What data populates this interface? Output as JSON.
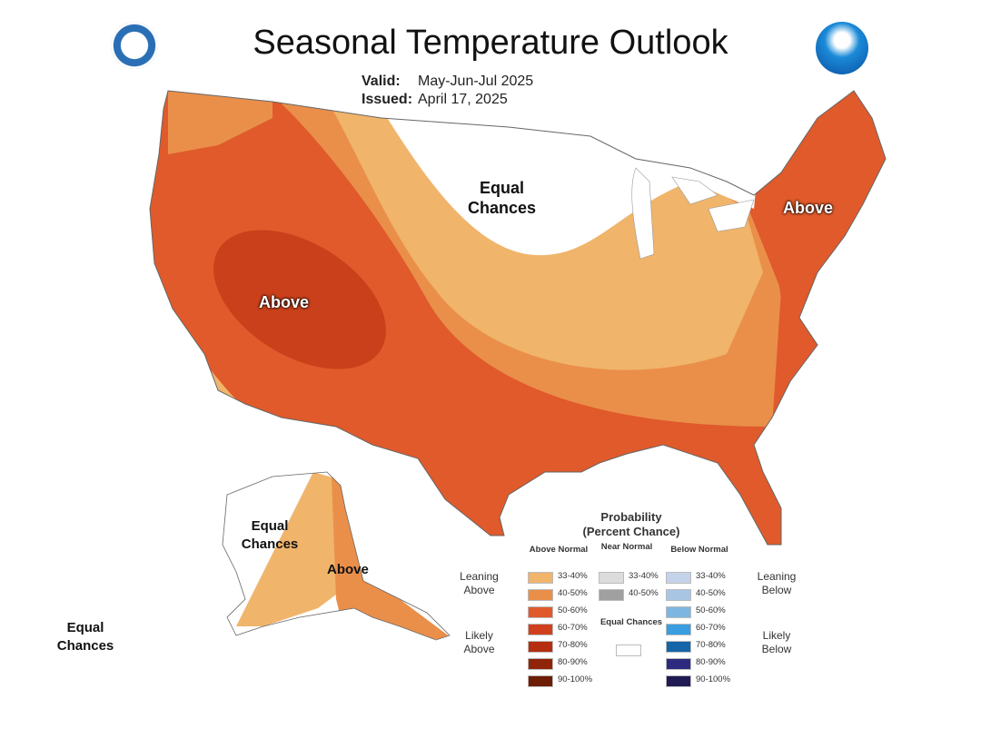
{
  "title": "Seasonal Temperature Outlook",
  "valid_label": "Valid:",
  "valid_value": "May-Jun-Jul 2025",
  "issued_label": "Issued:",
  "issued_value": "April 17, 2025",
  "map_labels": {
    "conus_above_west": "Above",
    "conus_equal": "Equal Chances",
    "conus_above_northeast": "Above",
    "alaska_equal": "Equal Chances",
    "alaska_above": "Above",
    "hawaii_equal": "Equal Chances"
  },
  "legend": {
    "title": "Probability",
    "subtitle": "(Percent Chance)",
    "above_header": "Above Normal",
    "near_header": "Near Normal",
    "below_header": "Below Normal",
    "leaning_above": "Leaning Above",
    "likely_above": "Likely Above",
    "leaning_below": "Leaning Below",
    "likely_below": "Likely Below",
    "equal_chances": "Equal Chances",
    "equal_color": "#ffffff",
    "above": [
      {
        "range": "33-40%",
        "color": "#f0b46a"
      },
      {
        "range": "40-50%",
        "color": "#ea8f4a"
      },
      {
        "range": "50-60%",
        "color": "#e05a2b"
      },
      {
        "range": "60-70%",
        "color": "#d0401c"
      },
      {
        "range": "70-80%",
        "color": "#b52e10"
      },
      {
        "range": "80-90%",
        "color": "#8f2408"
      },
      {
        "range": "90-100%",
        "color": "#6e1d06"
      }
    ],
    "near": [
      {
        "range": "33-40%",
        "color": "#dcdcdc"
      },
      {
        "range": "40-50%",
        "color": "#a0a0a0"
      }
    ],
    "below": [
      {
        "range": "33-40%",
        "color": "#c5d3ea"
      },
      {
        "range": "40-50%",
        "color": "#a8c6e4"
      },
      {
        "range": "50-60%",
        "color": "#7db6e0"
      },
      {
        "range": "60-70%",
        "color": "#3a9ee0"
      },
      {
        "range": "70-80%",
        "color": "#1565a8"
      },
      {
        "range": "80-90%",
        "color": "#2e2a80"
      },
      {
        "range": "90-100%",
        "color": "#201a55"
      }
    ]
  },
  "logos": {
    "left": "Department of Commerce seal",
    "right": "NOAA"
  }
}
